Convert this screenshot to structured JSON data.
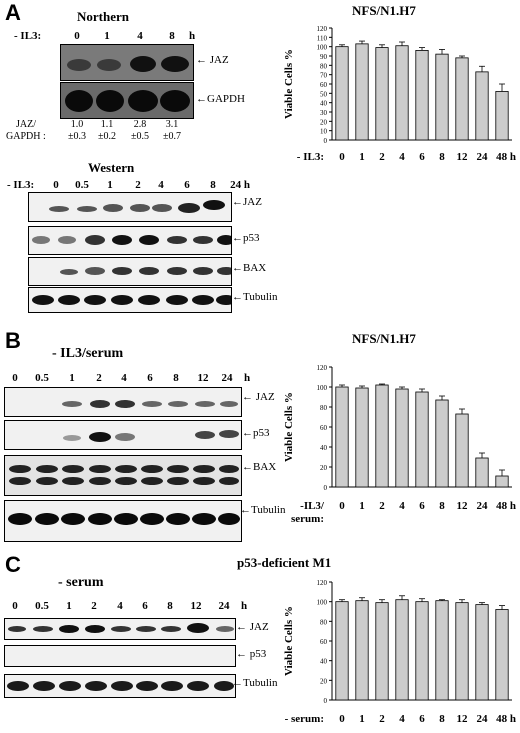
{
  "panels": {
    "A": {
      "letter": "A",
      "cell_line": "NFS/N1.H7",
      "northern": {
        "title": "Northern",
        "treatment_label": "- IL3:",
        "lanes": [
          "0",
          "1",
          "4",
          "8",
          "h"
        ],
        "bands": [
          "JAZ",
          "GAPDH"
        ],
        "ratio_label_line1": "JAZ/",
        "ratio_label_line2": "GAPDH :",
        "ratios": [
          "1.0",
          "1.1",
          "2.8",
          "3.1"
        ],
        "ratio_errors": [
          "±0.3",
          "±0.2",
          "±0.5",
          "±0.7"
        ]
      },
      "western": {
        "title": "Western",
        "treatment_label": "- IL3:",
        "lanes": [
          "0",
          "0.5",
          "1",
          "2",
          "4",
          "6",
          "8",
          "24 h"
        ],
        "bands": [
          "JAZ",
          "p53",
          "BAX",
          "Tubulin"
        ]
      }
    },
    "B": {
      "letter": "B",
      "cell_line": "NFS/N1.H7",
      "treatment_title": "- IL3/serum",
      "lanes": [
        "0",
        "0.5",
        "1",
        "2",
        "4",
        "6",
        "8",
        "12",
        "24",
        "h"
      ],
      "bands": [
        "JAZ",
        "p53",
        "BAX",
        "Tubulin"
      ]
    },
    "C": {
      "letter": "C",
      "cell_line": "p53-deficient M1",
      "treatment_title": "- serum",
      "lanes": [
        "0",
        "0.5",
        "1",
        "2",
        "4",
        "6",
        "8",
        "12",
        "24",
        "h"
      ],
      "bands": [
        "JAZ",
        "p53",
        "Tubulin"
      ]
    }
  },
  "chart_data": [
    {
      "type": "bar",
      "ylabel": "Viable Cells %",
      "xlabel": "- IL3:",
      "categories": [
        "0",
        "1",
        "2",
        "4",
        "6",
        "8",
        "12",
        "24",
        "48 h"
      ],
      "values": [
        100,
        103,
        99,
        101,
        96,
        92,
        88,
        73,
        52
      ],
      "errors": [
        2,
        3,
        3,
        4,
        3,
        5,
        2,
        6,
        8
      ],
      "ylim": [
        0,
        120
      ],
      "yticks": [
        0,
        10,
        20,
        30,
        40,
        50,
        60,
        70,
        80,
        90,
        100,
        110,
        120
      ],
      "bar_color": "#cccccc"
    },
    {
      "type": "bar",
      "ylabel": "Viable Cells %",
      "xlabel_line1": "-IL3/",
      "xlabel_line2": "serum:",
      "categories": [
        "0",
        "1",
        "2",
        "4",
        "6",
        "8",
        "12",
        "24",
        "48 h"
      ],
      "values": [
        100,
        99,
        102,
        98,
        95,
        87,
        73,
        29,
        11
      ],
      "errors": [
        2,
        2,
        1,
        2,
        3,
        4,
        5,
        5,
        6
      ],
      "ylim": [
        0,
        120
      ],
      "yticks": [
        0,
        20,
        40,
        60,
        80,
        100,
        120
      ],
      "bar_color": "#cccccc"
    },
    {
      "type": "bar",
      "ylabel": "Viable Cells %",
      "xlabel": "- serum:",
      "categories": [
        "0",
        "1",
        "2",
        "4",
        "6",
        "8",
        "12",
        "24",
        "48 h"
      ],
      "values": [
        100,
        101,
        99,
        102,
        100,
        101,
        99,
        97,
        92
      ],
      "errors": [
        2,
        3,
        3,
        4,
        3,
        1,
        3,
        2,
        4
      ],
      "ylim": [
        0,
        120
      ],
      "yticks": [
        0,
        20,
        40,
        60,
        80,
        100,
        120
      ],
      "bar_color": "#cccccc"
    }
  ]
}
